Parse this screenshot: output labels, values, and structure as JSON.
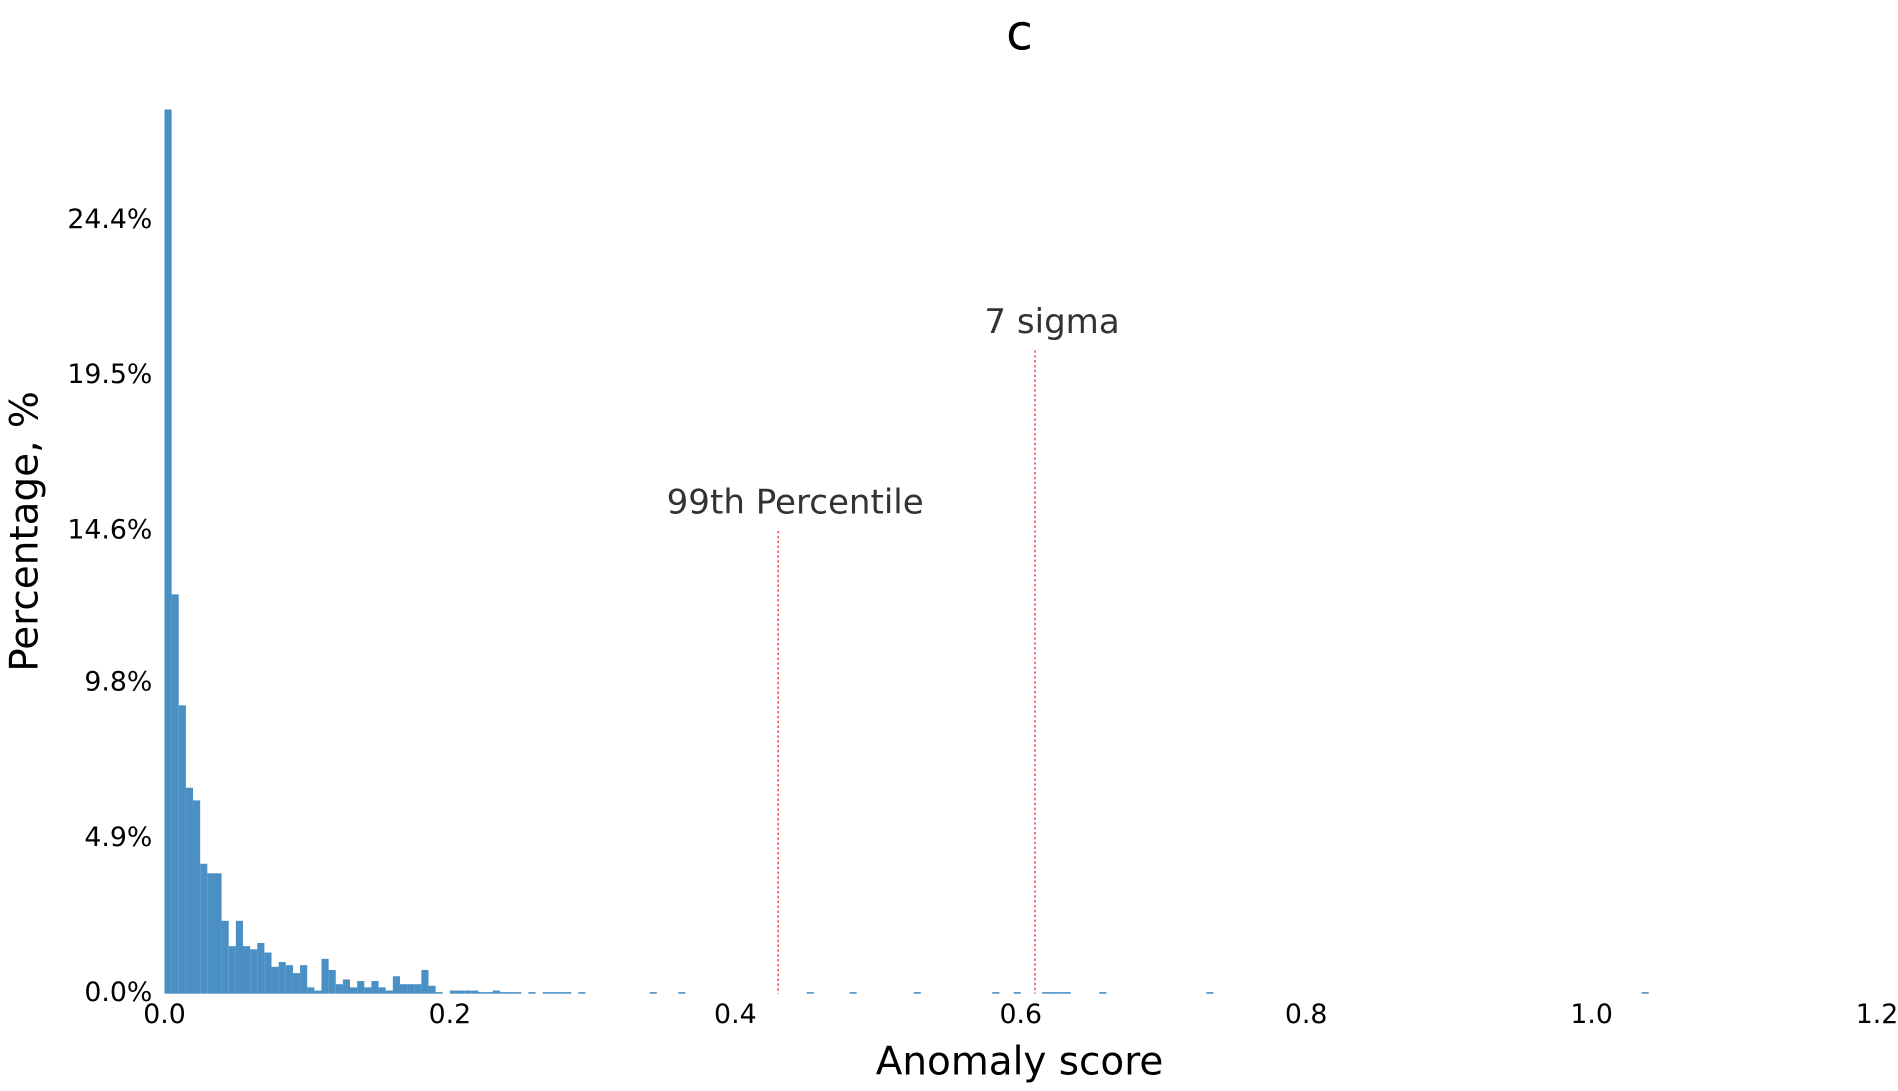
{
  "chart_data": {
    "type": "histogram",
    "title": "c",
    "x_label": "Anomaly score",
    "y_label": "Percentage, %",
    "color": "#4b90c4",
    "bins": [
      0,
      0.005,
      0.01,
      0.015,
      0.02,
      0.025,
      0.03,
      0.035,
      0.04,
      0.045,
      0.05,
      0.055,
      0.06,
      0.065,
      0.07,
      0.075,
      0.08,
      0.085,
      0.09,
      0.095,
      0.1,
      0.105,
      0.11,
      0.115,
      0.12,
      0.125,
      0.13,
      0.135,
      0.14,
      0.145,
      0.15,
      0.155,
      0.16,
      0.165,
      0.17,
      0.175,
      0.18,
      0.185,
      0.19,
      0.195,
      0.2,
      0.205,
      0.21,
      0.215,
      0.22,
      0.225,
      0.23,
      0.235,
      0.24,
      0.245,
      0.25,
      0.255,
      0.26,
      0.265,
      0.27,
      0.275,
      0.28,
      0.285,
      0.29,
      0.295,
      0.3,
      0.34,
      0.345,
      0.36,
      0.365,
      0.45,
      0.455,
      0.48,
      0.485,
      0.525,
      0.53,
      0.58,
      0.585,
      0.595,
      0.6,
      0.615,
      0.63,
      0.635,
      0.655,
      0.66,
      0.73,
      0.735,
      1.035,
      1.04
    ],
    "values": [
      27.9,
      12.6,
      9.1,
      6.5,
      6.1,
      4.1,
      3.8,
      3.8,
      2.3,
      1.5,
      2.3,
      1.5,
      1.4,
      1.6,
      1.3,
      0.85,
      1.0,
      0.9,
      0.65,
      0.9,
      0.2,
      0.1,
      1.1,
      0.75,
      0.3,
      0.45,
      0.2,
      0.4,
      0.2,
      0.4,
      0.2,
      0.1,
      0.55,
      0.3,
      0.3,
      0.3,
      0.75,
      0.25,
      0.05,
      0,
      0.1,
      0.1,
      0.1,
      0.1,
      0.05,
      0.05,
      0.1,
      0.05,
      0.05,
      0.05,
      0,
      0.05,
      0,
      0.05,
      0.05,
      0.05,
      0.05,
      0,
      0.05,
      0,
      0,
      0.05,
      0,
      0.05,
      0,
      0.05,
      0,
      0.05,
      0,
      0.05,
      0,
      0.05,
      0,
      0.05,
      0,
      0.05,
      0.05,
      0,
      0.05,
      0,
      0.05,
      0,
      0.05
    ],
    "xlim": [
      0,
      1.2
    ],
    "ylim": [
      0,
      27.9
    ],
    "xticks": [
      {
        "value": 0,
        "label": "0.0"
      },
      0.2,
      0.4,
      0.6,
      0.8,
      {
        "value": 1,
        "label": "1.0"
      },
      1.2
    ],
    "yticks": [
      {
        "value": 0,
        "label": "0.0%"
      },
      {
        "value": 4.9,
        "label": "4.9%"
      },
      {
        "value": 9.8,
        "label": "9.8%"
      },
      {
        "value": 14.6,
        "label": "14.6%"
      },
      {
        "value": 19.5,
        "label": "19.5%"
      },
      {
        "value": 24.4,
        "label": "24.4%"
      }
    ],
    "annotations": [
      {
        "text": "99th Percentile",
        "x": 0.43,
        "y": 14.6,
        "color": "#e8474a"
      },
      {
        "text": "7 sigma",
        "x": 0.61,
        "y": 20.3,
        "color": "#e8474a"
      }
    ]
  }
}
